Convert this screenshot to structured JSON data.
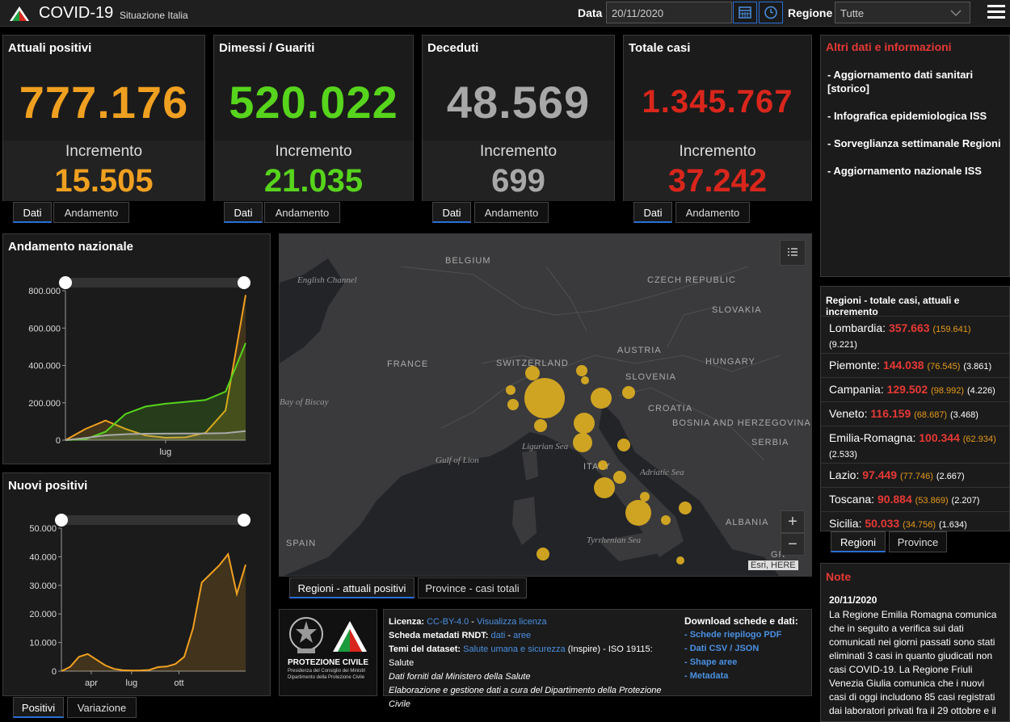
{
  "header": {
    "title": "COVID-19",
    "subtitle": "Situazione Italia",
    "date_label": "Data",
    "date_value": "20/11/2020",
    "region_label": "Regione",
    "region_value": "Tutte"
  },
  "cards": [
    {
      "title": "Attuali positivi",
      "value": "777.176",
      "inc_label": "Incremento",
      "inc_value": "15.505",
      "color": "#f0a020",
      "tabs": [
        "Dati",
        "Andamento"
      ]
    },
    {
      "title": "Dimessi / Guariti",
      "value": "520.022",
      "inc_label": "Incremento",
      "inc_value": "21.035",
      "color": "#57d41c",
      "tabs": [
        "Dati",
        "Andamento"
      ]
    },
    {
      "title": "Deceduti",
      "value": "48.569",
      "inc_label": "Incremento",
      "inc_value": "699",
      "color": "#a8a8a8",
      "tabs": [
        "Dati",
        "Andamento"
      ]
    },
    {
      "title": "Totale casi",
      "value": "1.345.767",
      "inc_label": "Incremento",
      "inc_value": "37.242",
      "color": "#d9261c",
      "tabs": [
        "Dati",
        "Andamento"
      ]
    }
  ],
  "links_panel": {
    "title": "Altri dati e informazioni",
    "items": [
      "- Aggiornamento dati sanitari [storico]",
      "- Infografica epidemiologica ISS",
      "- Sorveglianza settimanale Regioni",
      "- Aggiornamento nazionale ISS"
    ]
  },
  "regioni_panel": {
    "title": "Regioni - totale casi, attuali e incremento",
    "rows": [
      {
        "name": "Lombardia:",
        "total": "357.663",
        "active": "(159.641)",
        "inc": "(9.221)"
      },
      {
        "name": "Piemonte:",
        "total": "144.038",
        "active": "(76.545)",
        "inc": "(3.861)"
      },
      {
        "name": "Campania:",
        "total": "129.502",
        "active": "(98.992)",
        "inc": "(4.226)"
      },
      {
        "name": "Veneto:",
        "total": "116.159",
        "active": "(68.687)",
        "inc": "(3.468)"
      },
      {
        "name": "Emilia-Romagna:",
        "total": "100.344",
        "active": "(62.934)",
        "inc": "(2.533)"
      },
      {
        "name": "Lazio:",
        "total": "97.449",
        "active": "(77.746)",
        "inc": "(2.667)"
      },
      {
        "name": "Toscana:",
        "total": "90.884",
        "active": "(53.869)",
        "inc": "(2.207)"
      },
      {
        "name": "Sicilia:",
        "total": "50.033",
        "active": "(34.756)",
        "inc": "(1.634)"
      }
    ],
    "tabs": [
      "Regioni",
      "Province"
    ]
  },
  "note_panel": {
    "title": "Note",
    "date": "20/11/2020",
    "text": "La Regione Emilia Romagna comunica che in seguito a verifica sui dati comunicati nei giorni passati sono stati eliminati 3 casi in quanto giudicati non casi COVID-19. La Regione Friuli Venezia Giulia comunica che i nuovi casi di oggi includono 85 casi registrati dai laboratori privati fra il 29 ottobre e il"
  },
  "map": {
    "labels": [
      "BELGIUM",
      "English Channel",
      "CZECH REPUBLIC",
      "SLOVAKIA",
      "AUSTRIA",
      "HUNGARY",
      "SWITZERLAND",
      "FRANCE",
      "SLOVENIA",
      "CROATIA",
      "BOSNIA AND HERZEGOVINA",
      "SERBIA",
      "Bay of Biscay",
      "Ligurian Sea",
      "Gulf of Lion",
      "ITALY",
      "Adriatic Sea",
      "SPAIN",
      "Tyrrhenian Sea",
      "ALBANIA",
      "GR"
    ],
    "attribution": "Esri, HERE",
    "zoom_in": "+",
    "zoom_out": "−",
    "tabs": [
      "Regioni - attuali positivi",
      "Province - casi totali"
    ],
    "bubble_color": "#e0b020"
  },
  "charts": {
    "andamento": {
      "title": "Andamento nazionale",
      "tabs": [
        "Positivi",
        "Variazione"
      ]
    },
    "nuovi": {
      "title": "Nuovi positivi"
    }
  },
  "chart_data": [
    {
      "type": "line",
      "title": "Andamento nazionale",
      "x_tick_labels": [
        "lug"
      ],
      "y_tick_labels": [
        "0",
        "200.000",
        "400.000",
        "600.000",
        "800.000"
      ],
      "ylim": [
        0,
        800000
      ],
      "x": [
        "feb",
        "mar",
        "apr",
        "mag",
        "giu",
        "lug",
        "ago",
        "set",
        "ott",
        "nov"
      ],
      "series": [
        {
          "values": [
            0,
            60000,
            105000,
            60000,
            25000,
            13000,
            15000,
            40000,
            160000,
            777176
          ],
          "color": "#f0a020"
        },
        {
          "values": [
            0,
            5000,
            45000,
            140000,
            180000,
            195000,
            205000,
            215000,
            260000,
            520022
          ],
          "color": "#57d41c"
        },
        {
          "values": [
            0,
            12000,
            26000,
            32000,
            34500,
            35000,
            35400,
            35800,
            38000,
            48569
          ],
          "color": "#a8a8a8"
        }
      ]
    },
    {
      "type": "area",
      "title": "Nuovi positivi",
      "x_tick_labels": [
        "apr",
        "lug",
        "ott"
      ],
      "y_tick_labels": [
        "0",
        "10.000",
        "20.000",
        "30.000",
        "40.000",
        "50.000"
      ],
      "ylim": [
        0,
        50000
      ],
      "x": [
        "mar-01",
        "mar-10",
        "mar-20",
        "mar-31",
        "apr-15",
        "mag-01",
        "mag-20",
        "giu-10",
        "lug-01",
        "lug-20",
        "ago-10",
        "set-01",
        "set-20",
        "ott-01",
        "ott-10",
        "ott-20",
        "ott-31",
        "nov-05",
        "nov-10",
        "nov-13",
        "nov-16",
        "nov-20"
      ],
      "series": [
        {
          "values": [
            0,
            1500,
            5000,
            6000,
            4000,
            2000,
            800,
            300,
            200,
            250,
            400,
            1400,
            1600,
            2500,
            5000,
            15000,
            31000,
            34000,
            37000,
            40902,
            27000,
            37242
          ],
          "color": "#f0a020"
        }
      ]
    }
  ],
  "info": {
    "license_label": "Licenza:",
    "license_value": "CC-BY-4.0",
    "license_link": "Visualizza licenza",
    "meta_label": "Scheda metadati RNDT:",
    "meta_dati": "dati",
    "meta_aree": "aree",
    "temi_label": "Temi del dataset:",
    "temi_value": "Salute umana e sicurezza",
    "temi_inspire": "(Inspire) - ISO 19115:",
    "temi_salute": "Salute",
    "line_source": "Dati forniti dal Ministero della Salute",
    "line_elab": "Elaborazione e gestione dati a cura del Dipartimento della Protezione Civile",
    "download_title": "Download schede e dati:",
    "downloads": [
      "- Schede riepilogo PDF",
      "- Dati CSV / JSON",
      "- Shape aree",
      "- Metadata"
    ],
    "logo_title": "PROTEZIONE CIVILE",
    "logo_sub1": "Presidenza del Consiglio dei Ministri",
    "logo_sub2": "Dipartimento della Protezione Civile"
  }
}
